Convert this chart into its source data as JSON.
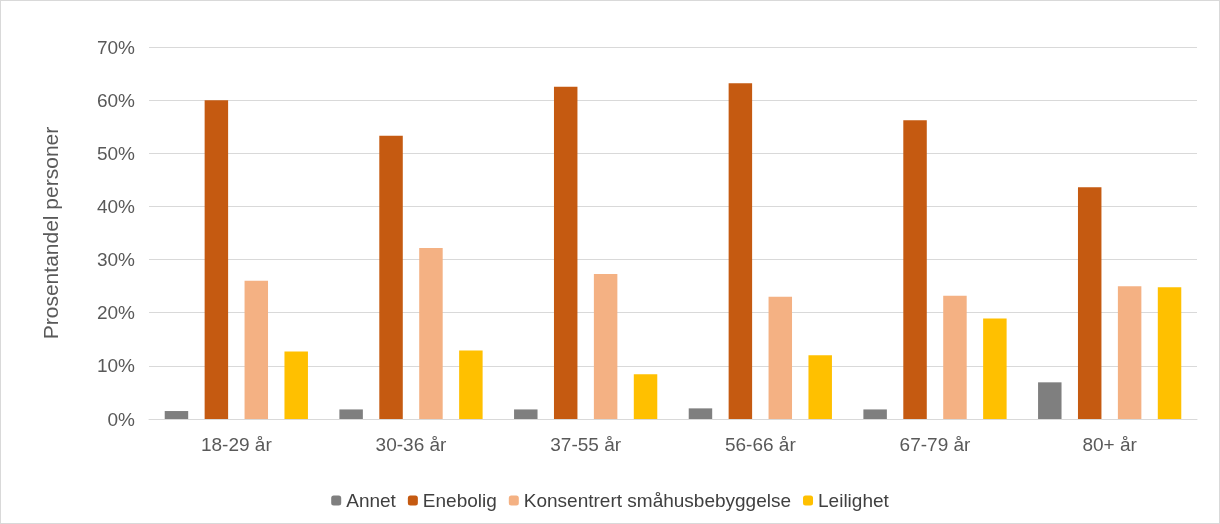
{
  "chart_data": {
    "type": "bar",
    "ylabel": "Prosentandel personer",
    "categories": [
      "18-29 år",
      "30-36 år",
      "37-55 år",
      "56-66 år",
      "67-79 år",
      "80+ år"
    ],
    "series": [
      {
        "name": "Annet",
        "color": "#7f7f7f",
        "values": [
          1.5,
          1.8,
          1.8,
          2.0,
          1.8,
          6.9
        ]
      },
      {
        "name": "Enebolig",
        "color": "#c55a11",
        "values": [
          60.0,
          53.3,
          62.5,
          63.2,
          56.2,
          43.6
        ]
      },
      {
        "name": "Konsentrert småhusbebyggelse",
        "color": "#f4b183",
        "values": [
          26.0,
          32.2,
          27.3,
          23.0,
          23.2,
          25.0
        ]
      },
      {
        "name": "Leilighet",
        "color": "#ffc000",
        "values": [
          12.7,
          12.9,
          8.4,
          12.0,
          18.9,
          24.8
        ]
      }
    ],
    "ylim": [
      0,
      70
    ],
    "yticks": [
      {
        "value": 0,
        "label": "0%"
      },
      {
        "value": 10,
        "label": "10%"
      },
      {
        "value": 20,
        "label": "20%"
      },
      {
        "value": 30,
        "label": "30%"
      },
      {
        "value": 40,
        "label": "40%"
      },
      {
        "value": 50,
        "label": "50%"
      },
      {
        "value": 60,
        "label": "60%"
      },
      {
        "value": 70,
        "label": "70%"
      }
    ],
    "grid": "y",
    "legend": "bottom"
  }
}
